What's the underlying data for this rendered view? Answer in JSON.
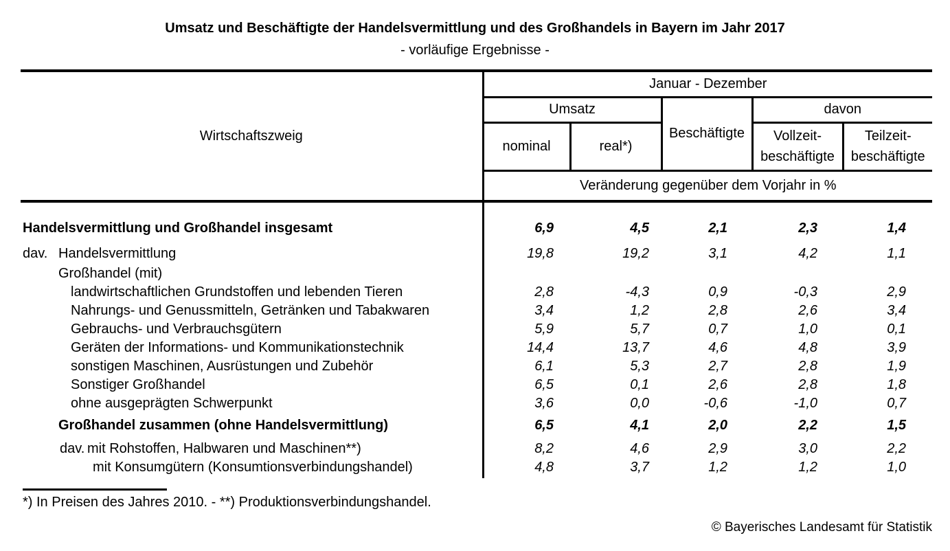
{
  "title": "Umsatz und Beschäftigte der Handelsvermittlung und des Großhandels in Bayern im Jahr 2017",
  "subtitle": "- vorläufige Ergebnisse -",
  "table": {
    "header": {
      "wirtschaftszweig": "Wirtschaftszweig",
      "period": "Januar - Dezember",
      "umsatz": "Umsatz",
      "beschaeftigte": "Beschäftigte",
      "davon": "davon",
      "nominal": "nominal",
      "real": "real*)",
      "vollzeit_line1": "Vollzeit-",
      "vollzeit_line2": "beschäftigte",
      "teilzeit_line1": "Teilzeit-",
      "teilzeit_line2": "beschäftigte",
      "unit_row": "Veränderung gegenüber dem Vorjahr in %"
    },
    "rows": [
      {
        "label": "Handelsvermittlung und Großhandel insgesamt",
        "values": [
          "6,9",
          "4,5",
          "2,1",
          "2,3",
          "1,4"
        ]
      },
      {
        "prefix": "dav.",
        "label": "Handelsvermittlung",
        "values": [
          "19,8",
          "19,2",
          "3,1",
          "4,2",
          "1,1"
        ]
      },
      {
        "label": "Großhandel (mit)",
        "values": [
          "",
          "",
          "",
          "",
          ""
        ]
      },
      {
        "label": "landwirtschaftlichen Grundstoffen und lebenden Tieren",
        "values": [
          "2,8",
          "-4,3",
          "0,9",
          "-0,3",
          "2,9"
        ]
      },
      {
        "label": "Nahrungs- und Genussmitteln, Getränken und Tabakwaren",
        "values": [
          "3,4",
          "1,2",
          "2,8",
          "2,6",
          "3,4"
        ]
      },
      {
        "label": "Gebrauchs- und Verbrauchsgütern",
        "values": [
          "5,9",
          "5,7",
          "0,7",
          "1,0",
          "0,1"
        ]
      },
      {
        "label": "Geräten der Informations- und Kommunikationstechnik",
        "values": [
          "14,4",
          "13,7",
          "4,6",
          "4,8",
          "3,9"
        ]
      },
      {
        "label": "sonstigen Maschinen, Ausrüstungen und Zubehör",
        "values": [
          "6,1",
          "5,3",
          "2,7",
          "2,8",
          "1,9"
        ]
      },
      {
        "label": "Sonstiger Großhandel",
        "values": [
          "6,5",
          "0,1",
          "2,6",
          "2,8",
          "1,8"
        ]
      },
      {
        "label": "ohne ausgeprägten Schwerpunkt",
        "values": [
          "3,6",
          "0,0",
          "-0,6",
          "-1,0",
          "0,7"
        ]
      },
      {
        "label": "Großhandel zusammen (ohne Handelsvermittlung)",
        "values": [
          "6,5",
          "4,1",
          "2,0",
          "2,2",
          "1,5"
        ]
      },
      {
        "prefix": "dav.",
        "label": "mit Rohstoffen, Halbwaren und Maschinen**)",
        "values": [
          "8,2",
          "4,6",
          "2,9",
          "3,0",
          "2,2"
        ]
      },
      {
        "label": "mit Konsumgütern (Konsumtionsverbindungshandel)",
        "values": [
          "4,8",
          "3,7",
          "1,2",
          "1,2",
          "1,0"
        ]
      }
    ]
  },
  "footnote": "*) In Preisen des Jahres 2010. - **) Produktionsverbindungshandel.",
  "copyright": "© Bayerisches Landesamt für Statistik"
}
